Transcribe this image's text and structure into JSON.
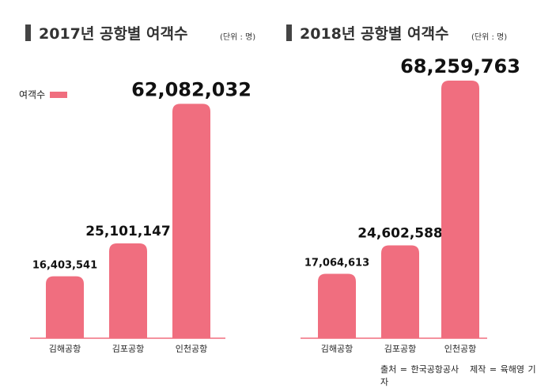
{
  "legend": "여객수",
  "source": "출처 = 한국공항공사",
  "credit": "제작 = 육해영 기자",
  "chart_data": [
    {
      "type": "bar",
      "title": "2017년 공항별 여객수",
      "unit": "(단위 : 명)",
      "categories": [
        "김해공항",
        "김포공항",
        "인천공항"
      ],
      "values": [
        16403541,
        25101147,
        62082032
      ],
      "labels": [
        "16,403,541",
        "25,101,147",
        "62,082,032"
      ],
      "color": "#f06e7f",
      "ylim": [
        0,
        62082032
      ]
    },
    {
      "type": "bar",
      "title": "2018년 공항별 여객수",
      "unit": "(단위 : 명)",
      "categories": [
        "김해공항",
        "김포공항",
        "인천공항"
      ],
      "values": [
        17064613,
        24602588,
        68259763
      ],
      "labels": [
        "17,064,613",
        "24,602,588",
        "68,259,763"
      ],
      "color": "#f06e7f",
      "ylim": [
        0,
        68259763
      ]
    }
  ]
}
